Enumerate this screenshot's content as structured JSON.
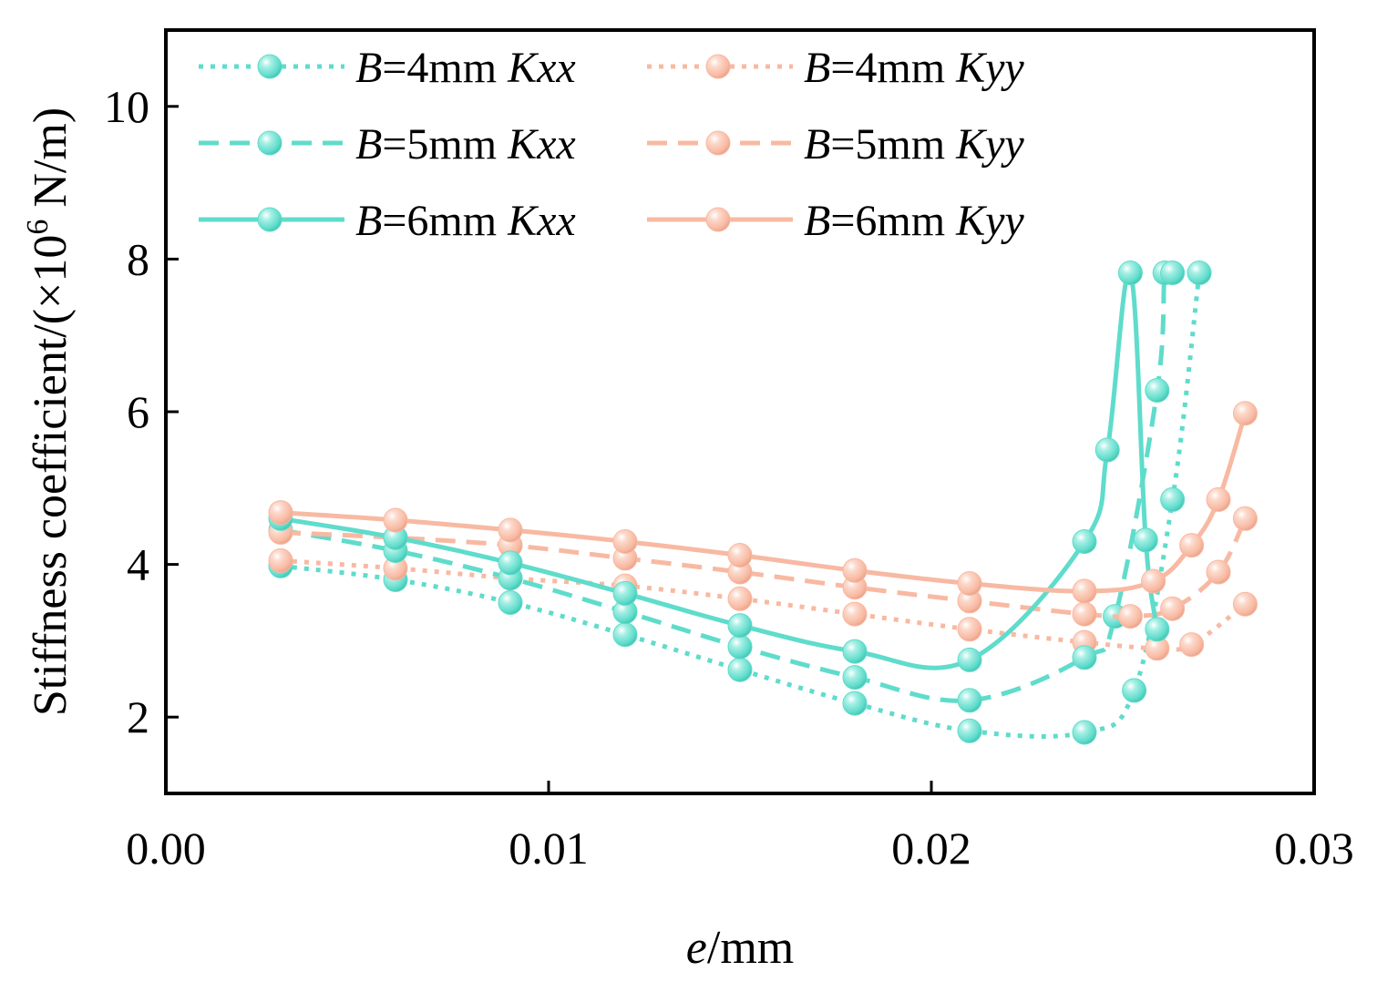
{
  "chart_data": {
    "type": "line",
    "title": "",
    "xlabel": {
      "italic": "e",
      "rest": "/mm"
    },
    "ylabel": {
      "text": "Stiffness coefficient/(×10",
      "sup": "6",
      "unit": " N/m)"
    },
    "xlim": [
      0.0,
      0.03
    ],
    "ylim": [
      1.0,
      11.0
    ],
    "xticks": [
      0.0,
      0.01,
      0.02,
      0.03
    ],
    "xtick_labels": [
      "0.00",
      "0.01",
      "0.02",
      "0.03"
    ],
    "yticks": [
      2,
      4,
      6,
      8,
      10
    ],
    "ytick_labels": [
      "2",
      "4",
      "6",
      "8",
      "10"
    ],
    "grid": false,
    "legend_position": "top",
    "colors": {
      "kxx": "#5fdccb",
      "kyy": "#f8b9a2"
    },
    "series": [
      {
        "id": "b4-kxx",
        "italic": "B",
        "mid": "=4mm ",
        "suffix": "Kxx",
        "color": "kxx",
        "dash": "dotted",
        "x": [
          0.003,
          0.006,
          0.009,
          0.012,
          0.015,
          0.018,
          0.021,
          0.024,
          0.0253,
          0.0263,
          0.027
        ],
        "y": [
          3.98,
          3.8,
          3.5,
          3.08,
          2.62,
          2.18,
          1.82,
          1.8,
          2.35,
          4.85,
          7.82
        ]
      },
      {
        "id": "b4-kyy",
        "italic": "B",
        "mid": "=4mm ",
        "suffix": "Kyy",
        "color": "kyy",
        "dash": "dotted",
        "x": [
          0.003,
          0.006,
          0.009,
          0.012,
          0.015,
          0.018,
          0.021,
          0.024,
          0.0259,
          0.0268,
          0.0282
        ],
        "y": [
          4.05,
          3.95,
          3.82,
          3.72,
          3.55,
          3.35,
          3.15,
          2.98,
          2.9,
          2.95,
          3.48
        ]
      },
      {
        "id": "b5-kxx",
        "italic": "B",
        "mid": "=5mm ",
        "suffix": "Kxx",
        "color": "kxx",
        "dash": "dashed",
        "x": [
          0.003,
          0.006,
          0.009,
          0.012,
          0.015,
          0.018,
          0.021,
          0.024,
          0.0248,
          0.0259,
          0.0261,
          0.0263
        ],
        "y": [
          4.45,
          4.18,
          3.82,
          3.38,
          2.92,
          2.52,
          2.22,
          2.78,
          3.32,
          6.28,
          7.82,
          7.82
        ]
      },
      {
        "id": "b5-kyy",
        "italic": "B",
        "mid": "=5mm ",
        "suffix": "Kyy",
        "color": "kyy",
        "dash": "dashed",
        "x": [
          0.003,
          0.006,
          0.009,
          0.012,
          0.015,
          0.018,
          0.021,
          0.024,
          0.0252,
          0.0263,
          0.0275,
          0.0282
        ],
        "y": [
          4.42,
          4.35,
          4.25,
          4.08,
          3.9,
          3.7,
          3.52,
          3.35,
          3.32,
          3.42,
          3.9,
          4.6
        ]
      },
      {
        "id": "b6-kxx",
        "italic": "B",
        "mid": "=6mm ",
        "suffix": "Kxx",
        "color": "kxx",
        "dash": "solid",
        "x": [
          0.003,
          0.006,
          0.009,
          0.012,
          0.015,
          0.018,
          0.021,
          0.024,
          0.0246,
          0.0252,
          0.0256,
          0.0259
        ],
        "y": [
          4.6,
          4.35,
          4.02,
          3.62,
          3.2,
          2.86,
          2.75,
          4.3,
          5.5,
          7.82,
          4.32,
          3.15
        ]
      },
      {
        "id": "b6-kyy",
        "italic": "B",
        "mid": "=6mm ",
        "suffix": "Kyy",
        "color": "kyy",
        "dash": "solid",
        "x": [
          0.003,
          0.006,
          0.009,
          0.012,
          0.015,
          0.018,
          0.021,
          0.024,
          0.0258,
          0.0268,
          0.0275,
          0.0282
        ],
        "y": [
          4.68,
          4.58,
          4.45,
          4.3,
          4.12,
          3.92,
          3.75,
          3.65,
          3.78,
          4.25,
          4.85,
          5.98
        ]
      }
    ]
  }
}
